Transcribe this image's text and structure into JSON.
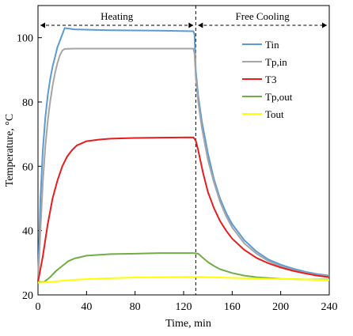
{
  "chart_data": {
    "type": "line",
    "xlabel": "Time, min",
    "ylabel": "Temperature, °C",
    "xlim": [
      0,
      240
    ],
    "ylim": [
      20,
      110
    ],
    "xticks": [
      0,
      40,
      80,
      120,
      160,
      200,
      240
    ],
    "yticks": [
      20,
      40,
      60,
      80,
      100
    ],
    "grid": false,
    "legend_position": "top-right",
    "phases": [
      {
        "label": "Heating",
        "x_start": 0,
        "x_end": 130
      },
      {
        "label": "Free Cooling",
        "x_start": 130,
        "x_end": 240
      }
    ],
    "divider_x": 130,
    "series": [
      {
        "name": "Tin",
        "color": "#5b9bd5",
        "points": [
          [
            0,
            24
          ],
          [
            2,
            50
          ],
          [
            4,
            65
          ],
          [
            6,
            75
          ],
          [
            8,
            82
          ],
          [
            10,
            87
          ],
          [
            12,
            91
          ],
          [
            14,
            94
          ],
          [
            16,
            97
          ],
          [
            18,
            99
          ],
          [
            20,
            101
          ],
          [
            22,
            103
          ],
          [
            30,
            102.6
          ],
          [
            60,
            102.3
          ],
          [
            100,
            102.2
          ],
          [
            128,
            102.0
          ],
          [
            129,
            101
          ],
          [
            130,
            90
          ],
          [
            132,
            82
          ],
          [
            135,
            74
          ],
          [
            140,
            64
          ],
          [
            145,
            56
          ],
          [
            150,
            50
          ],
          [
            155,
            45.5
          ],
          [
            160,
            42
          ],
          [
            170,
            37
          ],
          [
            180,
            33.5
          ],
          [
            190,
            31
          ],
          [
            200,
            29.4
          ],
          [
            210,
            28.2
          ],
          [
            220,
            27.2
          ],
          [
            230,
            26.5
          ],
          [
            240,
            26
          ]
        ]
      },
      {
        "name": "Tp,in",
        "color": "#a5a5a5",
        "points": [
          [
            0,
            24
          ],
          [
            2,
            40
          ],
          [
            4,
            55
          ],
          [
            6,
            66
          ],
          [
            8,
            74
          ],
          [
            10,
            80
          ],
          [
            12,
            85
          ],
          [
            14,
            89
          ],
          [
            16,
            92
          ],
          [
            18,
            94.5
          ],
          [
            20,
            96
          ],
          [
            22,
            96.5
          ],
          [
            30,
            96.6
          ],
          [
            60,
            96.6
          ],
          [
            100,
            96.6
          ],
          [
            128,
            96.6
          ],
          [
            129,
            95
          ],
          [
            130,
            88
          ],
          [
            132,
            80
          ],
          [
            135,
            72
          ],
          [
            140,
            62
          ],
          [
            145,
            55
          ],
          [
            150,
            49
          ],
          [
            155,
            44.5
          ],
          [
            160,
            41
          ],
          [
            170,
            36
          ],
          [
            180,
            32.8
          ],
          [
            190,
            30.5
          ],
          [
            200,
            28.9
          ],
          [
            210,
            27.7
          ],
          [
            220,
            26.9
          ],
          [
            230,
            26.2
          ],
          [
            240,
            25.7
          ]
        ]
      },
      {
        "name": "T3",
        "color": "#e81c1c",
        "points": [
          [
            0,
            24
          ],
          [
            4,
            32
          ],
          [
            8,
            42
          ],
          [
            12,
            50
          ],
          [
            16,
            55.5
          ],
          [
            20,
            60
          ],
          [
            24,
            63
          ],
          [
            28,
            65
          ],
          [
            32,
            66.5
          ],
          [
            40,
            67.8
          ],
          [
            50,
            68.3
          ],
          [
            60,
            68.6
          ],
          [
            80,
            68.8
          ],
          [
            100,
            68.9
          ],
          [
            128,
            69
          ],
          [
            130,
            68
          ],
          [
            132,
            65
          ],
          [
            136,
            58
          ],
          [
            140,
            52
          ],
          [
            145,
            47
          ],
          [
            150,
            43
          ],
          [
            155,
            40
          ],
          [
            160,
            37.5
          ],
          [
            170,
            34
          ],
          [
            180,
            31.5
          ],
          [
            190,
            29.8
          ],
          [
            200,
            28.5
          ],
          [
            210,
            27.5
          ],
          [
            220,
            26.7
          ],
          [
            230,
            26
          ],
          [
            240,
            25.5
          ]
        ]
      },
      {
        "name": "Tp,out",
        "color": "#70ad47",
        "points": [
          [
            0,
            24
          ],
          [
            5,
            24
          ],
          [
            10,
            25.5
          ],
          [
            15,
            27.5
          ],
          [
            20,
            29
          ],
          [
            25,
            30.5
          ],
          [
            30,
            31.3
          ],
          [
            40,
            32.2
          ],
          [
            60,
            32.7
          ],
          [
            80,
            32.8
          ],
          [
            100,
            33
          ],
          [
            120,
            33
          ],
          [
            128,
            33
          ],
          [
            132,
            32.8
          ],
          [
            136,
            31.5
          ],
          [
            140,
            30.2
          ],
          [
            145,
            29
          ],
          [
            150,
            28
          ],
          [
            160,
            26.8
          ],
          [
            170,
            26
          ],
          [
            180,
            25.5
          ],
          [
            200,
            25
          ],
          [
            220,
            24.8
          ],
          [
            240,
            24.8
          ]
        ]
      },
      {
        "name": "Tout",
        "color": "#ffff00",
        "points": [
          [
            0,
            23.8
          ],
          [
            10,
            24
          ],
          [
            20,
            24.4
          ],
          [
            30,
            24.7
          ],
          [
            40,
            24.9
          ],
          [
            60,
            25.2
          ],
          [
            80,
            25.4
          ],
          [
            100,
            25.5
          ],
          [
            120,
            25.6
          ],
          [
            130,
            25.6
          ],
          [
            150,
            25.4
          ],
          [
            170,
            25.2
          ],
          [
            190,
            25
          ],
          [
            210,
            24.9
          ],
          [
            240,
            24.6
          ]
        ]
      }
    ]
  }
}
